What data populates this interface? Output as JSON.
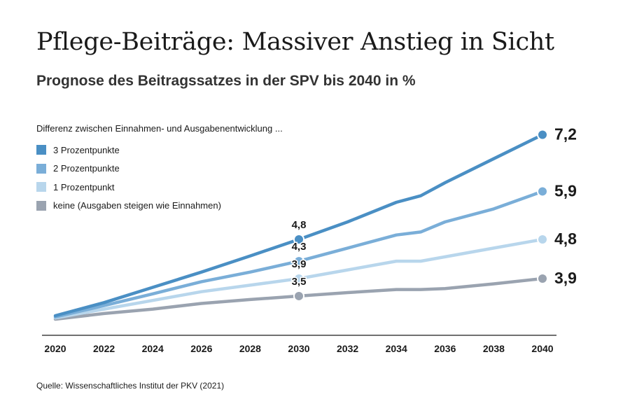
{
  "title": "Pflege-Beiträge: Massiver Anstieg in Sicht",
  "subtitle": "Prognose des Beitragssatzes in der SPV bis 2040 in %",
  "legend": {
    "title": "Differenz zwischen Einnahmen- und Ausgabenentwicklung ...",
    "placement": "top-left"
  },
  "source": "Quelle: Wissenschaftliches Institut der PKV (2021)",
  "chart_data": {
    "type": "line",
    "title": "Pflege-Beiträge: Massiver Anstieg in Sicht",
    "subtitle": "Prognose des Beitragssatzes in der SPV bis 2040 in %",
    "xlabel": "",
    "ylabel": "",
    "grid": false,
    "legend_placement": "top-left",
    "xlim": [
      2020,
      2040
    ],
    "ylim": [
      2.6,
      7.4
    ],
    "x_ticks": [
      "2020",
      "2022",
      "2024",
      "2026",
      "2028",
      "2030",
      "2032",
      "2034",
      "2036",
      "2038",
      "2040"
    ],
    "x": [
      2020,
      2022,
      2024,
      2026,
      2028,
      2030,
      2032,
      2034,
      2035,
      2036,
      2038,
      2040
    ],
    "series": [
      {
        "name": "3 Prozentpunkte",
        "color": "#4a8fc4",
        "values": [
          3.05,
          3.35,
          3.7,
          4.05,
          4.42,
          4.8,
          5.2,
          5.65,
          5.8,
          6.1,
          6.65,
          7.2
        ],
        "labels": [
          {
            "x": 2030,
            "y": 4.8,
            "text": "4,8"
          },
          {
            "x": 2040,
            "y": 7.2,
            "text": "7,2"
          }
        ]
      },
      {
        "name": "2 Prozentpunkte",
        "color": "#7aaed8",
        "values": [
          3.02,
          3.28,
          3.55,
          3.83,
          4.05,
          4.3,
          4.6,
          4.9,
          4.97,
          5.2,
          5.5,
          5.9
        ],
        "labels": [
          {
            "x": 2030,
            "y": 4.3,
            "text": "4,3"
          },
          {
            "x": 2040,
            "y": 5.9,
            "text": "5,9"
          }
        ]
      },
      {
        "name": "1 Prozentpunkt",
        "color": "#b8d6ec",
        "values": [
          3.0,
          3.2,
          3.4,
          3.6,
          3.75,
          3.9,
          4.1,
          4.3,
          4.3,
          4.4,
          4.6,
          4.8
        ],
        "labels": [
          {
            "x": 2030,
            "y": 3.9,
            "text": "3,9"
          },
          {
            "x": 2040,
            "y": 4.8,
            "text": "4,8"
          }
        ]
      },
      {
        "name": "keine (Ausgaben steigen wie Einnahmen)",
        "color": "#9aa3b0",
        "values": [
          2.97,
          3.1,
          3.2,
          3.33,
          3.42,
          3.5,
          3.58,
          3.65,
          3.65,
          3.67,
          3.78,
          3.9
        ],
        "labels": [
          {
            "x": 2030,
            "y": 3.5,
            "text": "3,5"
          },
          {
            "x": 2040,
            "y": 3.9,
            "text": "3,9"
          }
        ]
      }
    ]
  }
}
